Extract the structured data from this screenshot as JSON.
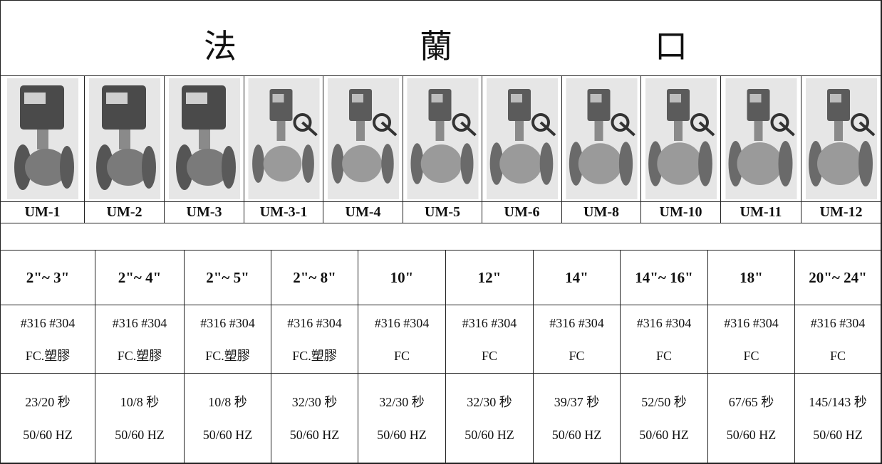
{
  "header": {
    "title": [
      "法",
      "蘭",
      "口"
    ]
  },
  "models": [
    "UM-1",
    "UM-2",
    "UM-3",
    "UM-3-1",
    "UM-4",
    "UM-5",
    "UM-6",
    "UM-8",
    "UM-10",
    "UM-11",
    "UM-12"
  ],
  "specs": [
    {
      "size": "2\"~ 3\"",
      "grade": "#316 #304",
      "body": "FC.塑膠",
      "time": "23/20 秒",
      "power": "50/60 HZ"
    },
    {
      "size": "2\"~ 4\"",
      "grade": "#316 #304",
      "body": "FC.塑膠",
      "time": "10/8 秒",
      "power": "50/60 HZ"
    },
    {
      "size": "2\"~ 5\"",
      "grade": "#316 #304",
      "body": "FC.塑膠",
      "time": "10/8 秒",
      "power": "50/60 HZ"
    },
    {
      "size": "2\"~ 8\"",
      "grade": "#316 #304",
      "body": "FC.塑膠",
      "time": "32/30 秒",
      "power": "50/60 HZ"
    },
    {
      "size": "10\"",
      "grade": "#316 #304",
      "body": "FC",
      "time": "32/30 秒",
      "power": "50/60 HZ"
    },
    {
      "size": "12\"",
      "grade": "#316 #304",
      "body": "FC",
      "time": "32/30 秒",
      "power": "50/60 HZ"
    },
    {
      "size": "14\"",
      "grade": "#316 #304",
      "body": "FC",
      "time": "39/37 秒",
      "power": "50/60 HZ"
    },
    {
      "size": "14\"~ 16\"",
      "grade": "#316 #304",
      "body": "FC",
      "time": "52/50 秒",
      "power": "50/60 HZ"
    },
    {
      "size": "18\"",
      "grade": "#316 #304",
      "body": "FC",
      "time": "67/65 秒",
      "power": "50/60 HZ"
    },
    {
      "size": "20\"~ 24\"",
      "grade": "#316 #304",
      "body": "FC",
      "time": "145/143 秒",
      "power": "50/60 HZ"
    }
  ]
}
